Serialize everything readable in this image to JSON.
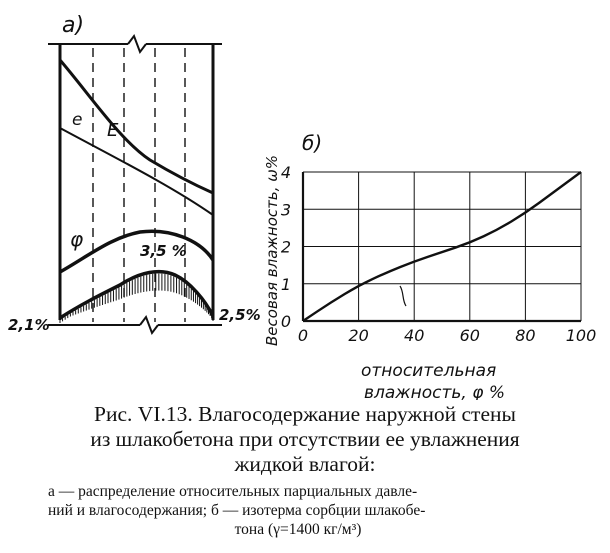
{
  "panel_a": {
    "label": "а)",
    "curve_labels": {
      "e": "e",
      "E": "E",
      "phi": "φ"
    },
    "peak_label": "3,5 %",
    "left_edge_label": "2,1%",
    "right_edge_label": "2,5%"
  },
  "panel_b": {
    "label": "б)"
  },
  "chart_data": {
    "type": "line",
    "xlabel_line1": "относительная",
    "xlabel_line2": "влажность, φ %",
    "ylabel": "Весовая влажность, ω%",
    "xlim": [
      0,
      100
    ],
    "ylim": [
      0,
      4
    ],
    "grid": true,
    "x_ticks": [
      "0",
      "20",
      "40",
      "60",
      "80",
      "100"
    ],
    "y_ticks": [
      "0",
      "1",
      "2",
      "3",
      "4"
    ],
    "series": [
      {
        "x": [
          0,
          10,
          20,
          30,
          40,
          50,
          60,
          70,
          80,
          90,
          100
        ],
        "values": [
          0,
          0.5,
          0.95,
          1.3,
          1.6,
          1.85,
          2.1,
          2.45,
          2.9,
          3.45,
          4.0
        ]
      }
    ]
  },
  "caption": {
    "line1": "Рис. VI.13. Влагосодержание наружной стены",
    "line2": "из шлакобетона при отсутствии ее увлажнения",
    "line3": "жидкой влагой:",
    "sub1": "а — распределение относительных парциальных давле-",
    "sub2": "ний и влагосодержания; б — изотерма сорбции шлакобе-",
    "sub3": "тона (γ=1400 кг/м³)"
  }
}
